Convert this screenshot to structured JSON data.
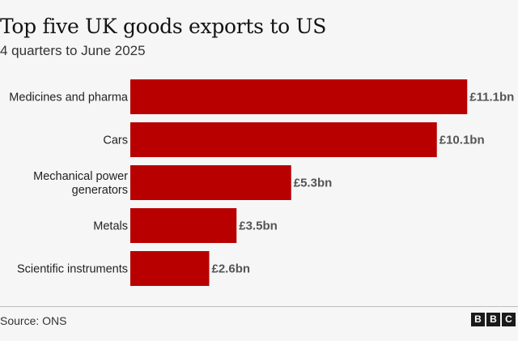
{
  "header": {
    "title": "Top five UK goods exports to US",
    "subtitle": "4 quarters to June 2025"
  },
  "footer": {
    "source": "Source: ONS",
    "logo_letters": [
      "B",
      "B",
      "C"
    ]
  },
  "chart_data": {
    "type": "bar",
    "orientation": "horizontal",
    "categories": [
      [
        "Medicines and pharma"
      ],
      [
        "Cars"
      ],
      [
        "Mechanical power",
        "generators"
      ],
      [
        "Metals"
      ],
      [
        "Scientific instruments"
      ]
    ],
    "values": [
      11.1,
      10.1,
      5.3,
      3.5,
      2.6
    ],
    "value_labels": [
      "£11.1bn",
      "£10.1bn",
      "£5.3bn",
      "£3.5bn",
      "£2.6bn"
    ],
    "title": "Top five UK goods exports to US",
    "subtitle": "4 quarters to June 2025",
    "bar_color": "#b80000",
    "grid": false,
    "legend": "none"
  }
}
